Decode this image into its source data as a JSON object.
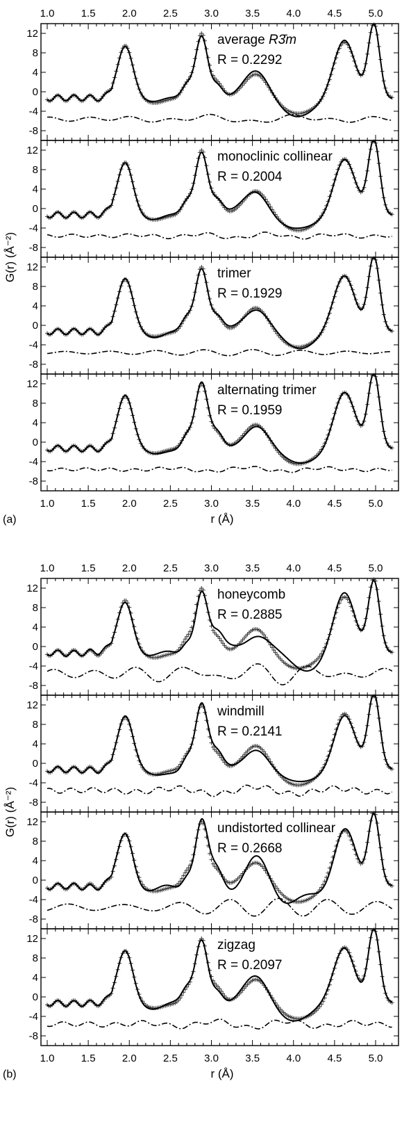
{
  "figure": {
    "panel_labels": [
      "(a)",
      "(b)"
    ]
  },
  "chart_data": [
    {
      "type": "line",
      "panel": "(a)",
      "xlabel": "r (Å)",
      "ylabel": "G(r) (Å⁻²)",
      "xlim": [
        1.0,
        5.2
      ],
      "x_ticks": [
        "1.0",
        "1.5",
        "2.0",
        "2.5",
        "3.0",
        "3.5",
        "4.0",
        "4.5",
        "5.0"
      ],
      "ylim": [
        -10,
        14
      ],
      "y_ticks": [
        "12",
        "8",
        "4",
        "0",
        "-4",
        "-8"
      ],
      "subplots": [
        {
          "model_pre": "average ",
          "model_italic": "R3̄m",
          "r_text": "R = 0.2292",
          "R": 0.2292
        },
        {
          "model_pre": "monoclinic collinear",
          "model_italic": "",
          "r_text": "R = 0.2004",
          "R": 0.2004
        },
        {
          "model_pre": "trimer",
          "model_italic": "",
          "r_text": "R = 0.1929",
          "R": 0.1929
        },
        {
          "model_pre": "alternating trimer",
          "model_italic": "",
          "r_text": "R = 0.1959",
          "R": 0.1959
        }
      ]
    },
    {
      "type": "line",
      "panel": "(b)",
      "xlabel": "r (Å)",
      "ylabel": "G(r) (Å⁻²)",
      "xlim": [
        1.0,
        5.2
      ],
      "x_ticks": [
        "1.0",
        "1.5",
        "2.0",
        "2.5",
        "3.0",
        "3.5",
        "4.0",
        "4.5",
        "5.0"
      ],
      "ylim": [
        -10,
        14
      ],
      "y_ticks": [
        "12",
        "8",
        "4",
        "0",
        "-4",
        "-8"
      ],
      "subplots": [
        {
          "model_pre": "honeycomb",
          "model_italic": "",
          "r_text": "R = 0.2885",
          "R": 0.2885
        },
        {
          "model_pre": "windmill",
          "model_italic": "",
          "r_text": "R = 0.2141",
          "R": 0.2141
        },
        {
          "model_pre": "undistorted collinear",
          "model_italic": "",
          "r_text": "R = 0.2668",
          "R": 0.2668
        },
        {
          "model_pre": "zigzag",
          "model_italic": "",
          "r_text": "R = 0.2097",
          "R": 0.2097
        }
      ]
    }
  ]
}
